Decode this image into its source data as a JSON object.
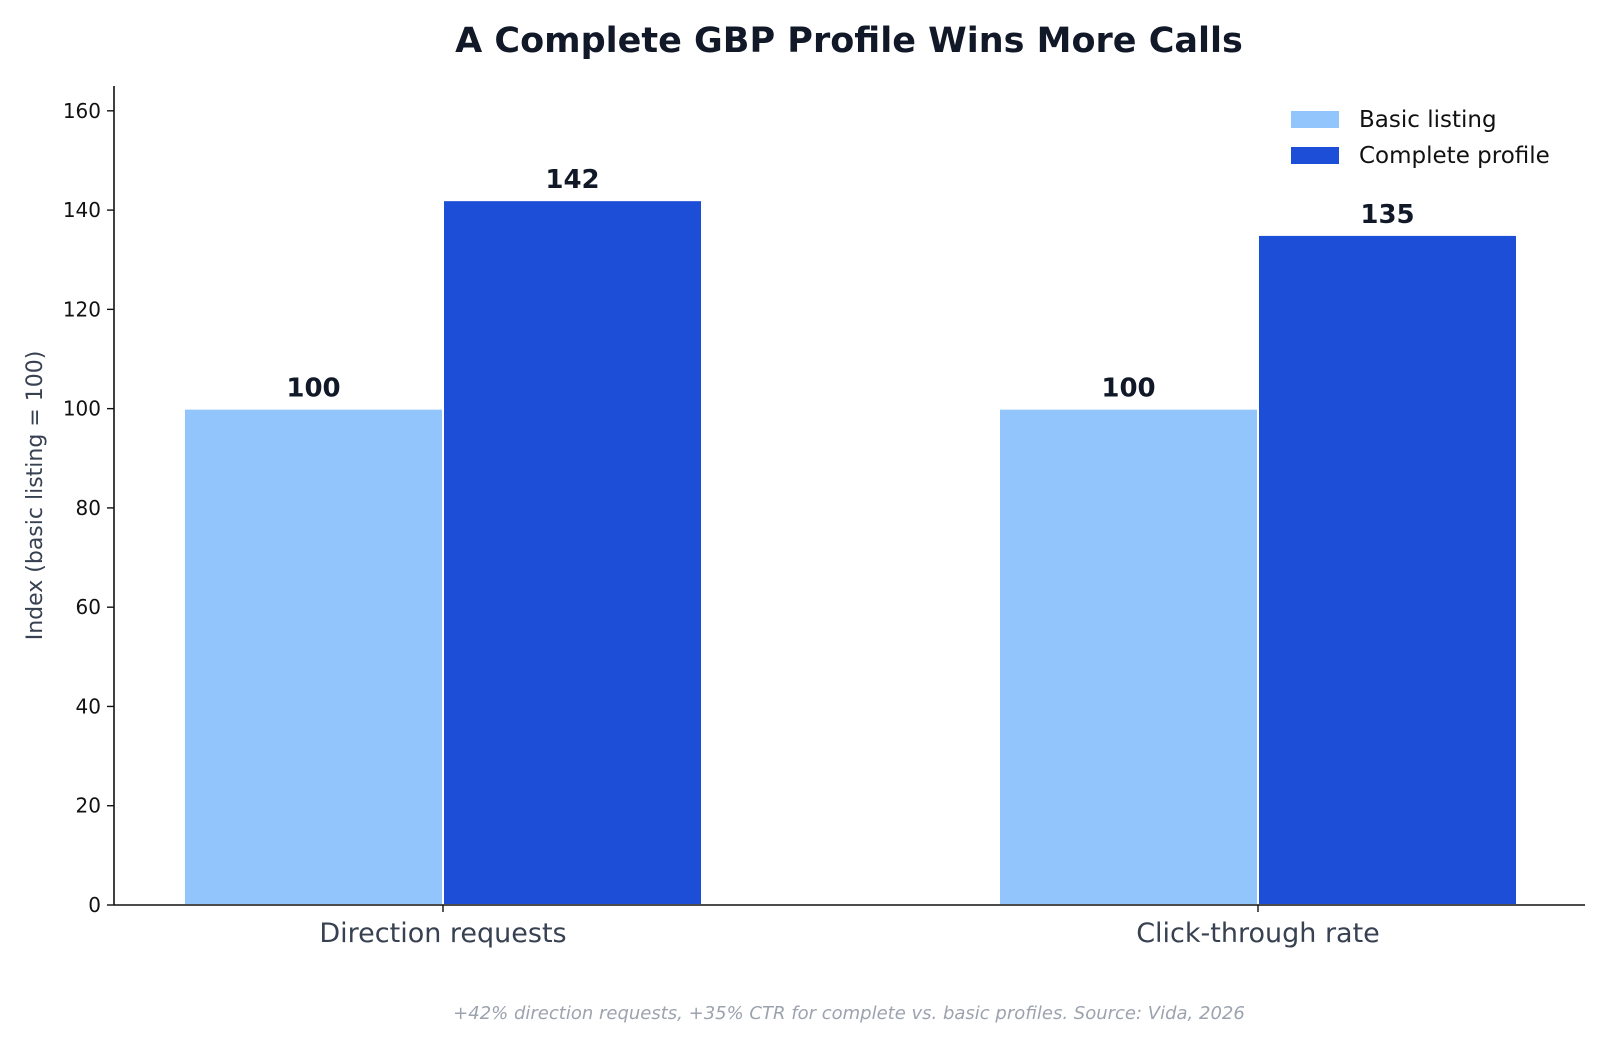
{
  "chart_data": {
    "type": "bar",
    "title": "A Complete GBP Profile Wins More Calls",
    "xlabel": "",
    "ylabel": "Index (basic listing = 100)",
    "categories": [
      "Direction requests",
      "Click-through rate"
    ],
    "series": [
      {
        "name": "Basic listing",
        "values": [
          100,
          100
        ],
        "color": "#93c5fd"
      },
      {
        "name": "Complete profile",
        "values": [
          142,
          135
        ],
        "color": "#1d4ed8"
      }
    ],
    "data_labels": [
      [
        "100",
        "100"
      ],
      [
        "142",
        "135"
      ]
    ],
    "ylim": [
      0,
      165
    ],
    "yticks": [
      0,
      20,
      40,
      60,
      80,
      100,
      120,
      140,
      160
    ],
    "grid": false,
    "legend_position": "top-right",
    "footnote": "+42% direction requests, +35% CTR for complete vs. basic profiles. Source: Vida, 2026"
  }
}
